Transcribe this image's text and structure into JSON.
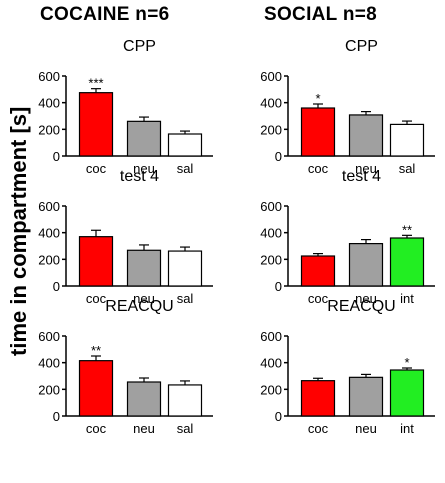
{
  "columns": [
    {
      "title": "COCAINE n=6"
    },
    {
      "title": "SOCIAL n=8"
    }
  ],
  "shared_ylabel": "time in compartment [s]",
  "colors": {
    "coc": "#ff0000",
    "neu": "#a0a0a0",
    "sal": "#ffffff",
    "int": "#22ee22",
    "outline": "#000000"
  },
  "chart_data": [
    {
      "type": "bar",
      "panel": "cocaine-cpp",
      "title": "CPP",
      "ylabel": "time in compartment [s]",
      "ylim": [
        0,
        600
      ],
      "yticks": [
        0,
        200,
        400,
        600
      ],
      "categories": [
        "coc",
        "neu",
        "sal"
      ],
      "values": [
        475,
        260,
        165
      ],
      "errors": [
        30,
        32,
        22
      ],
      "significance": [
        "***",
        "",
        ""
      ]
    },
    {
      "type": "bar",
      "panel": "social-cpp",
      "title": "CPP",
      "ylabel": "time in compartment [s]",
      "ylim": [
        0,
        600
      ],
      "yticks": [
        0,
        200,
        400,
        600
      ],
      "categories": [
        "coc",
        "neu",
        "sal"
      ],
      "values": [
        360,
        308,
        237
      ],
      "errors": [
        30,
        25,
        25
      ],
      "significance": [
        "*",
        "",
        ""
      ]
    },
    {
      "type": "bar",
      "panel": "cocaine-test4",
      "title": "test 4",
      "ylabel": "time in compartment [s]",
      "ylim": [
        0,
        600
      ],
      "yticks": [
        0,
        200,
        400,
        600
      ],
      "categories": [
        "coc",
        "neu",
        "sal"
      ],
      "values": [
        370,
        268,
        262
      ],
      "errors": [
        48,
        40,
        30
      ],
      "significance": [
        "",
        "",
        ""
      ]
    },
    {
      "type": "bar",
      "panel": "social-test4",
      "title": "test 4",
      "ylabel": "time in compartment [s]",
      "ylim": [
        0,
        600
      ],
      "yticks": [
        0,
        200,
        400,
        600
      ],
      "categories": [
        "coc",
        "neu",
        "int"
      ],
      "values": [
        225,
        318,
        360
      ],
      "errors": [
        18,
        30,
        20
      ],
      "significance": [
        "",
        "",
        "**"
      ]
    },
    {
      "type": "bar",
      "panel": "cocaine-reacqu",
      "title": "REACQU",
      "ylabel": "time in compartment [s]",
      "ylim": [
        0,
        600
      ],
      "yticks": [
        0,
        200,
        400,
        600
      ],
      "categories": [
        "coc",
        "neu",
        "sal"
      ],
      "values": [
        415,
        255,
        233
      ],
      "errors": [
        35,
        30,
        30
      ],
      "significance": [
        "**",
        "",
        ""
      ]
    },
    {
      "type": "bar",
      "panel": "social-reacqu",
      "title": "REACQU",
      "ylabel": "time in compartment [s]",
      "ylim": [
        0,
        600
      ],
      "yticks": [
        0,
        200,
        400,
        600
      ],
      "categories": [
        "coc",
        "neu",
        "int"
      ],
      "values": [
        265,
        290,
        345
      ],
      "errors": [
        18,
        22,
        15
      ],
      "significance": [
        "",
        "",
        "*"
      ]
    }
  ]
}
